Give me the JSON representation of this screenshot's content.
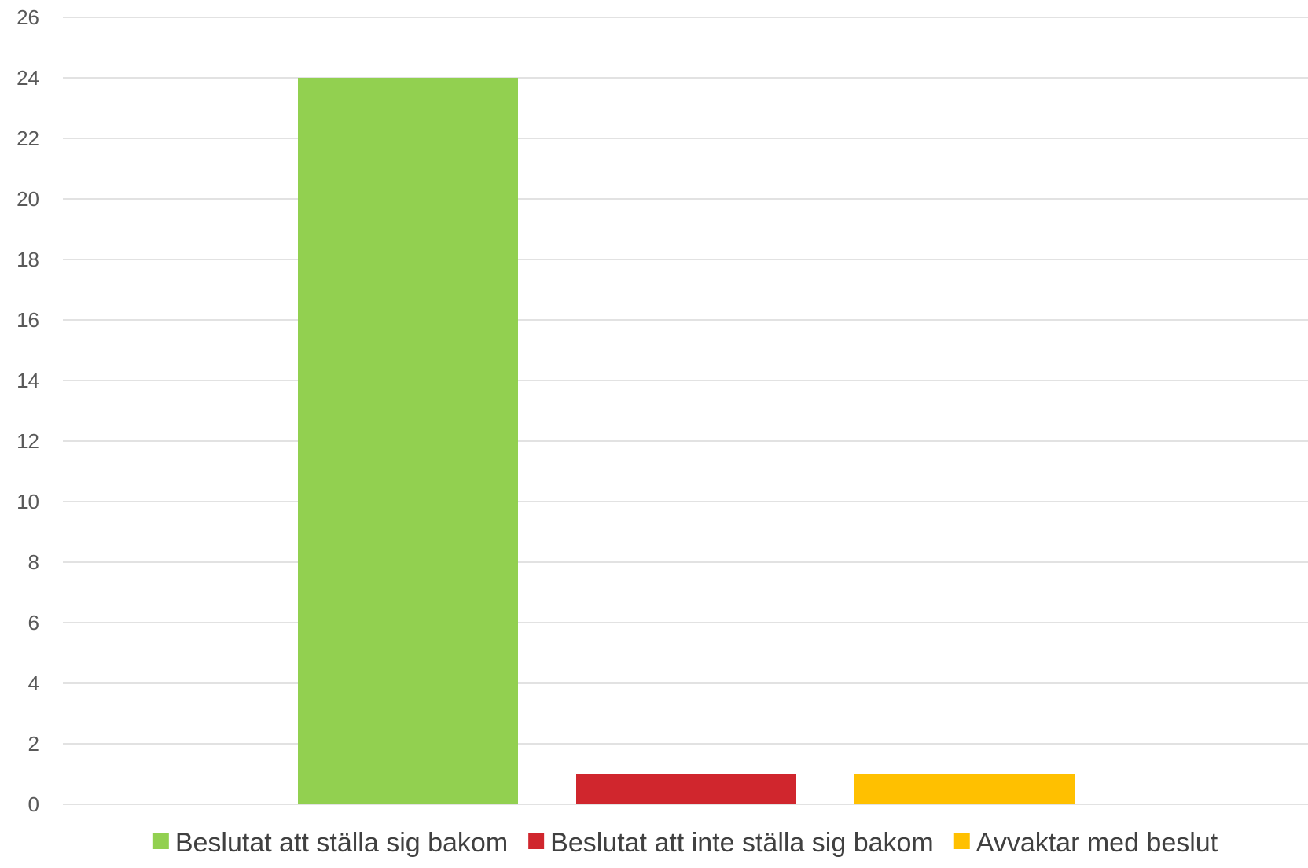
{
  "chart_data": {
    "type": "bar",
    "categories": [
      "Beslutat att ställa sig bakom",
      "Beslutat att inte ställa sig bakom",
      "Avvaktar med beslut"
    ],
    "series": [
      {
        "name": "Beslutat att ställa sig bakom",
        "value": 24,
        "color": "#92d050"
      },
      {
        "name": "Beslutat att inte ställa sig bakom",
        "value": 1,
        "color": "#d0262d"
      },
      {
        "name": "Avvaktar med beslut",
        "value": 1,
        "color": "#ffc000"
      }
    ],
    "ylim": [
      0,
      26
    ],
    "ytick_step": 2,
    "yticks": [
      "0",
      "2",
      "4",
      "6",
      "8",
      "10",
      "12",
      "14",
      "16",
      "18",
      "20",
      "22",
      "24",
      "26"
    ],
    "grid": true,
    "legend_position": "bottom"
  }
}
